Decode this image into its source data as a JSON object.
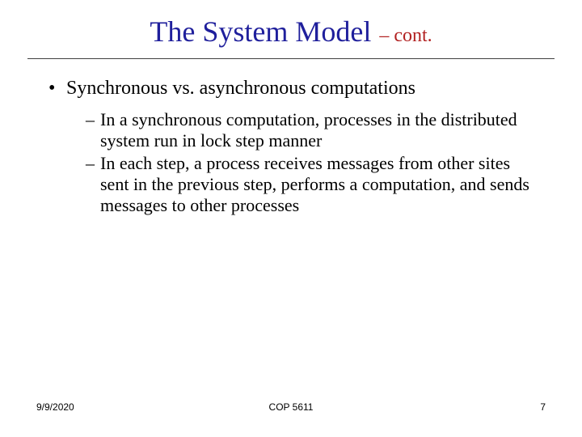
{
  "title": {
    "main": "The System Model",
    "sub": "– cont.",
    "main_color": "#1f1f9c",
    "sub_color": "#b22222",
    "main_fontsize": 36,
    "sub_fontsize": 24
  },
  "divider_color": "#404040",
  "body": {
    "fontsize_lvl1": 24,
    "fontsize_lvl2": 22,
    "bullet_char": "•",
    "dash_char": "–",
    "lvl1_text": "Synchronous vs. asynchronous computations",
    "lvl2_items": [
      "In a synchronous computation, processes in the distributed system run in lock step manner",
      "In each step, a process receives messages from other sites sent in the previous step, performs a computation, and sends messages to other processes"
    ]
  },
  "footer": {
    "date": "9/9/2020",
    "course": "COP 5611",
    "page": "7",
    "fontsize": 12
  },
  "background_color": "#ffffff"
}
